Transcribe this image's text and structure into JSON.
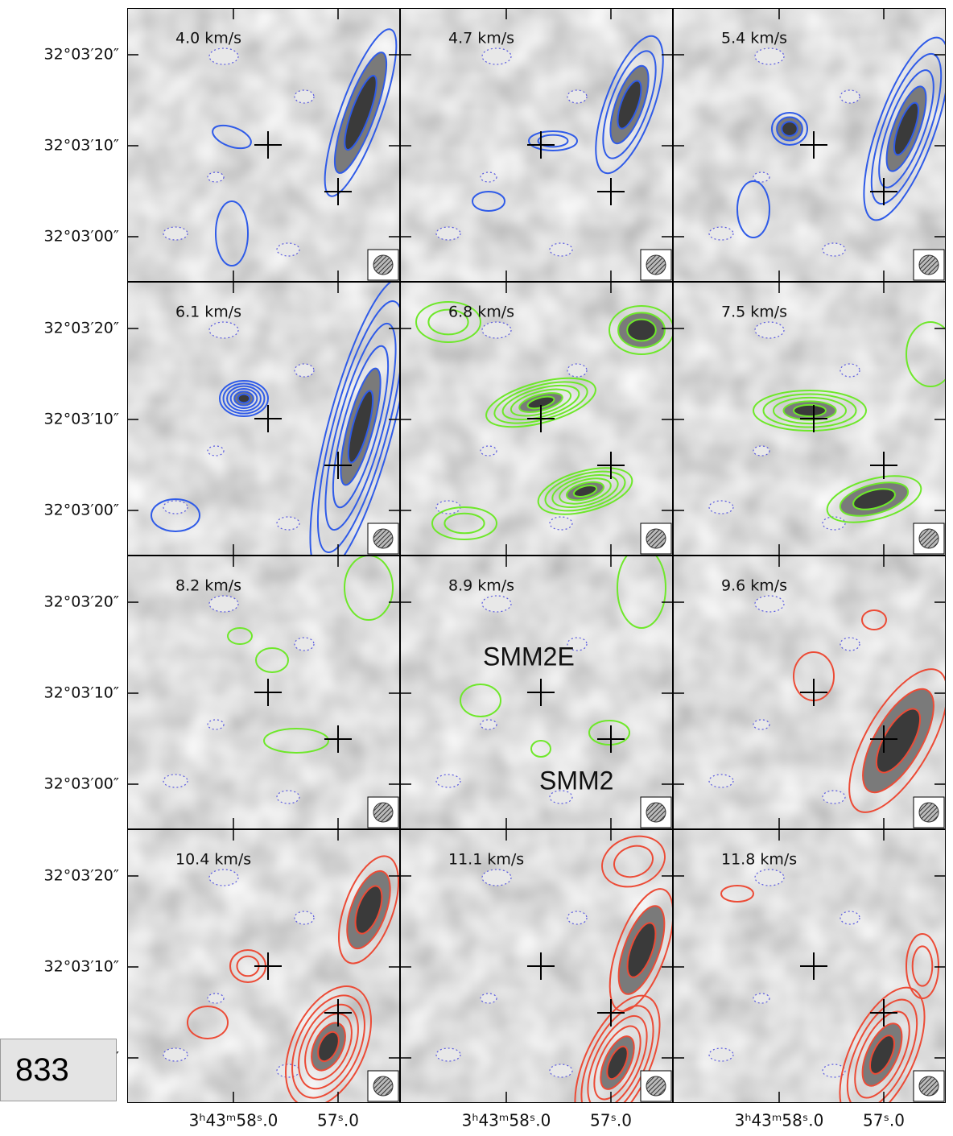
{
  "figure": {
    "panels": [
      {
        "label": "4.0 km/s",
        "contour_color": "#2f5be8"
      },
      {
        "label": "4.7 km/s",
        "contour_color": "#2f5be8"
      },
      {
        "label": "5.4 km/s",
        "contour_color": "#2f5be8"
      },
      {
        "label": "6.1 km/s",
        "contour_color": "#2f5be8"
      },
      {
        "label": "6.8 km/s",
        "contour_color": "#6ee82a"
      },
      {
        "label": "7.5 km/s",
        "contour_color": "#6ee82a"
      },
      {
        "label": "8.2 km/s",
        "contour_color": "#6ee82a"
      },
      {
        "label": "8.9 km/s",
        "contour_color": "#6ee82a"
      },
      {
        "label": "9.6 km/s",
        "contour_color": "#ec4b36"
      },
      {
        "label": "10.4 km/s",
        "contour_color": "#ec4b36"
      },
      {
        "label": "11.1 km/s",
        "contour_color": "#ec4b36"
      },
      {
        "label": "11.8 km/s",
        "contour_color": "#ec4b36"
      }
    ],
    "dec_labels": [
      "32°03′20″",
      "32°03′10″",
      "32°03′00″"
    ],
    "ra_labels": [
      "3ʰ43ᵐ58ˢ.0",
      "57ˢ.0"
    ],
    "annotations": [
      "SMM2E",
      "SMM2"
    ]
  },
  "page_number": "833"
}
